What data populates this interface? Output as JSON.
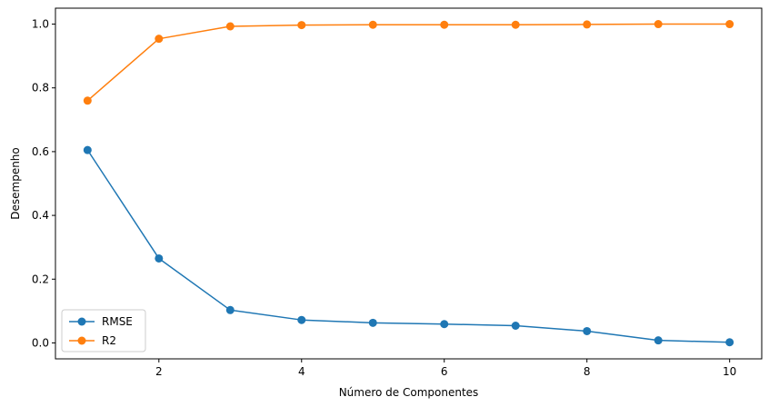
{
  "chart_data": {
    "type": "line",
    "title": "",
    "xlabel": "Número de Componentes",
    "ylabel": "Desempenho",
    "x": [
      1,
      2,
      3,
      4,
      5,
      6,
      7,
      8,
      9,
      10
    ],
    "xlim": [
      0.55,
      10.45
    ],
    "ylim": [
      -0.05,
      1.05
    ],
    "xticks": [
      2,
      4,
      6,
      8,
      10
    ],
    "yticks": [
      0.0,
      0.2,
      0.4,
      0.6,
      0.8,
      1.0
    ],
    "xtick_labels": [
      "2",
      "4",
      "6",
      "8",
      "10"
    ],
    "ytick_labels": [
      "0.0",
      "0.2",
      "0.4",
      "0.6",
      "0.8",
      "1.0"
    ],
    "grid": false,
    "legend_position": "lower-left",
    "series": [
      {
        "name": "RMSE",
        "color": "#1f77b4",
        "marker": "circle",
        "values": [
          0.605,
          0.265,
          0.103,
          0.072,
          0.063,
          0.059,
          0.054,
          0.037,
          0.008,
          0.002
        ]
      },
      {
        "name": "R2",
        "color": "#ff7f0e",
        "marker": "circle",
        "values": [
          0.76,
          0.954,
          0.993,
          0.997,
          0.998,
          0.998,
          0.998,
          0.999,
          1.0,
          1.0
        ]
      }
    ]
  }
}
